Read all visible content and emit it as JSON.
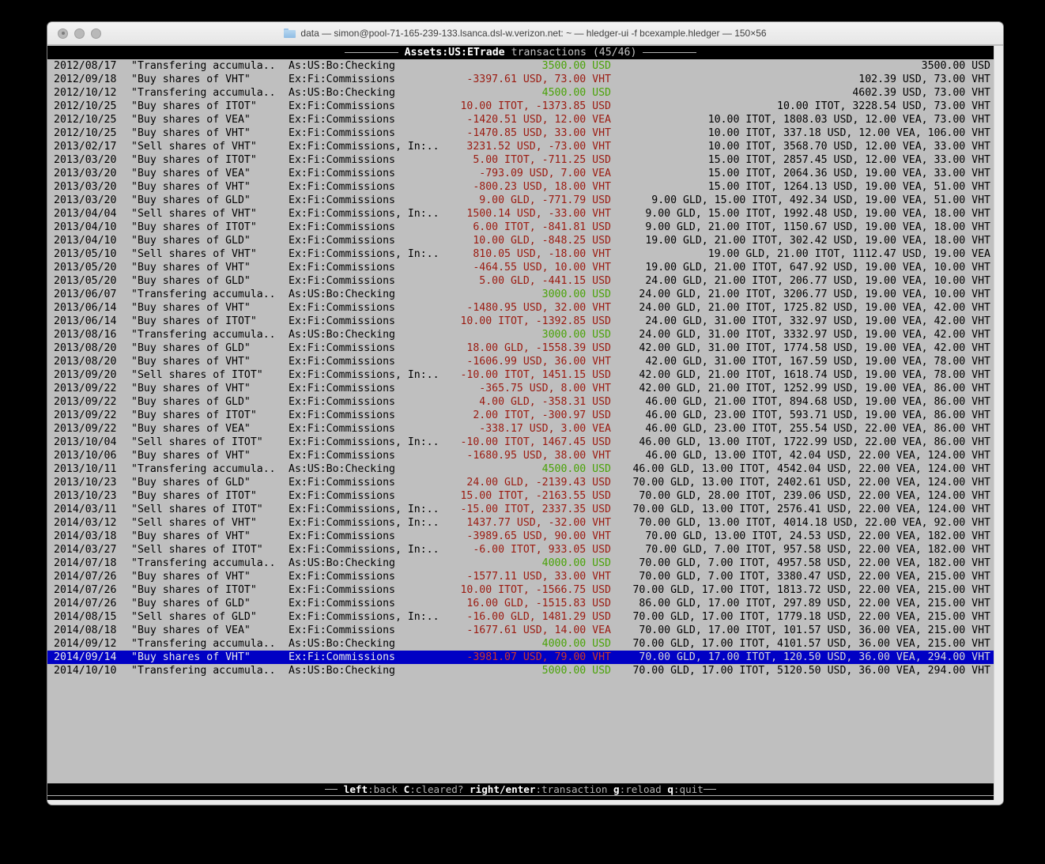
{
  "window": {
    "title": "data — simon@pool-71-165-239-133.lsanca.dsl-w.verizon.net: ~ — hledger-ui -f bcexample.hledger — 150×56",
    "traffic_lights": [
      "close",
      "minimize",
      "zoom"
    ]
  },
  "colors": {
    "terminal_bg": "#bfbfbf",
    "red": "#9b1a10",
    "green": "#4aa308",
    "selection": "#0000c4",
    "selection_red": "#cc372b"
  },
  "screen": {
    "header": {
      "account": "Assets:US:ETrade",
      "rest": "transactions (45/46)"
    },
    "footer": {
      "hints": [
        {
          "key": "left",
          "desc": ":back"
        },
        {
          "key": "C",
          "desc": ":cleared?"
        },
        {
          "key": "right/enter",
          "desc": ":transaction"
        },
        {
          "key": "g",
          "desc": ":reload"
        },
        {
          "key": "q",
          "desc": ":quit"
        }
      ]
    }
  },
  "register": {
    "selected_index": 44,
    "rows": [
      {
        "date": "2012/08/17",
        "description": "\"Transfering accumula..",
        "account": "As:US:Bo:Checking",
        "amount": "3500.00 USD",
        "kind": "deposit",
        "balance": "3500.00 USD"
      },
      {
        "date": "2012/09/18",
        "description": "\"Buy shares of VHT\"",
        "account": "Ex:Fi:Commissions",
        "amount": "-3397.61 USD, 73.00 VHT",
        "kind": "trade",
        "balance": "102.39 USD, 73.00 VHT"
      },
      {
        "date": "2012/10/12",
        "description": "\"Transfering accumula..",
        "account": "As:US:Bo:Checking",
        "amount": "4500.00 USD",
        "kind": "deposit",
        "balance": "4602.39 USD, 73.00 VHT"
      },
      {
        "date": "2012/10/25",
        "description": "\"Buy shares of ITOT\"",
        "account": "Ex:Fi:Commissions",
        "amount": "10.00 ITOT, -1373.85 USD",
        "kind": "trade",
        "balance": "10.00 ITOT, 3228.54 USD, 73.00 VHT"
      },
      {
        "date": "2012/10/25",
        "description": "\"Buy shares of VEA\"",
        "account": "Ex:Fi:Commissions",
        "amount": "-1420.51 USD, 12.00 VEA",
        "kind": "trade",
        "balance": "10.00 ITOT, 1808.03 USD, 12.00 VEA, 73.00 VHT"
      },
      {
        "date": "2012/10/25",
        "description": "\"Buy shares of VHT\"",
        "account": "Ex:Fi:Commissions",
        "amount": "-1470.85 USD, 33.00 VHT",
        "kind": "trade",
        "balance": "10.00 ITOT, 337.18 USD, 12.00 VEA, 106.00 VHT"
      },
      {
        "date": "2013/02/17",
        "description": "\"Sell shares of VHT\"",
        "account": "Ex:Fi:Commissions, In:..",
        "amount": "3231.52 USD, -73.00 VHT",
        "kind": "trade",
        "balance": "10.00 ITOT, 3568.70 USD, 12.00 VEA, 33.00 VHT"
      },
      {
        "date": "2013/03/20",
        "description": "\"Buy shares of ITOT\"",
        "account": "Ex:Fi:Commissions",
        "amount": "5.00 ITOT, -711.25 USD",
        "kind": "trade",
        "balance": "15.00 ITOT, 2857.45 USD, 12.00 VEA, 33.00 VHT"
      },
      {
        "date": "2013/03/20",
        "description": "\"Buy shares of VEA\"",
        "account": "Ex:Fi:Commissions",
        "amount": "-793.09 USD, 7.00 VEA",
        "kind": "trade",
        "balance": "15.00 ITOT, 2064.36 USD, 19.00 VEA, 33.00 VHT"
      },
      {
        "date": "2013/03/20",
        "description": "\"Buy shares of VHT\"",
        "account": "Ex:Fi:Commissions",
        "amount": "-800.23 USD, 18.00 VHT",
        "kind": "trade",
        "balance": "15.00 ITOT, 1264.13 USD, 19.00 VEA, 51.00 VHT"
      },
      {
        "date": "2013/03/20",
        "description": "\"Buy shares of GLD\"",
        "account": "Ex:Fi:Commissions",
        "amount": "9.00 GLD, -771.79 USD",
        "kind": "trade",
        "balance": "9.00 GLD, 15.00 ITOT, 492.34 USD, 19.00 VEA, 51.00 VHT"
      },
      {
        "date": "2013/04/04",
        "description": "\"Sell shares of VHT\"",
        "account": "Ex:Fi:Commissions, In:..",
        "amount": "1500.14 USD, -33.00 VHT",
        "kind": "trade",
        "balance": "9.00 GLD, 15.00 ITOT, 1992.48 USD, 19.00 VEA, 18.00 VHT"
      },
      {
        "date": "2013/04/10",
        "description": "\"Buy shares of ITOT\"",
        "account": "Ex:Fi:Commissions",
        "amount": "6.00 ITOT, -841.81 USD",
        "kind": "trade",
        "balance": "9.00 GLD, 21.00 ITOT, 1150.67 USD, 19.00 VEA, 18.00 VHT"
      },
      {
        "date": "2013/04/10",
        "description": "\"Buy shares of GLD\"",
        "account": "Ex:Fi:Commissions",
        "amount": "10.00 GLD, -848.25 USD",
        "kind": "trade",
        "balance": "19.00 GLD, 21.00 ITOT, 302.42 USD, 19.00 VEA, 18.00 VHT"
      },
      {
        "date": "2013/05/10",
        "description": "\"Sell shares of VHT\"",
        "account": "Ex:Fi:Commissions, In:..",
        "amount": "810.05 USD, -18.00 VHT",
        "kind": "trade",
        "balance": "19.00 GLD, 21.00 ITOT, 1112.47 USD, 19.00 VEA"
      },
      {
        "date": "2013/05/20",
        "description": "\"Buy shares of VHT\"",
        "account": "Ex:Fi:Commissions",
        "amount": "-464.55 USD, 10.00 VHT",
        "kind": "trade",
        "balance": "19.00 GLD, 21.00 ITOT, 647.92 USD, 19.00 VEA, 10.00 VHT"
      },
      {
        "date": "2013/05/20",
        "description": "\"Buy shares of GLD\"",
        "account": "Ex:Fi:Commissions",
        "amount": "5.00 GLD, -441.15 USD",
        "kind": "trade",
        "balance": "24.00 GLD, 21.00 ITOT, 206.77 USD, 19.00 VEA, 10.00 VHT"
      },
      {
        "date": "2013/06/07",
        "description": "\"Transfering accumula..",
        "account": "As:US:Bo:Checking",
        "amount": "3000.00 USD",
        "kind": "deposit",
        "balance": "24.00 GLD, 21.00 ITOT, 3206.77 USD, 19.00 VEA, 10.00 VHT"
      },
      {
        "date": "2013/06/14",
        "description": "\"Buy shares of VHT\"",
        "account": "Ex:Fi:Commissions",
        "amount": "-1480.95 USD, 32.00 VHT",
        "kind": "trade",
        "balance": "24.00 GLD, 21.00 ITOT, 1725.82 USD, 19.00 VEA, 42.00 VHT"
      },
      {
        "date": "2013/06/14",
        "description": "\"Buy shares of ITOT\"",
        "account": "Ex:Fi:Commissions",
        "amount": "10.00 ITOT, -1392.85 USD",
        "kind": "trade",
        "balance": "24.00 GLD, 31.00 ITOT, 332.97 USD, 19.00 VEA, 42.00 VHT"
      },
      {
        "date": "2013/08/16",
        "description": "\"Transfering accumula..",
        "account": "As:US:Bo:Checking",
        "amount": "3000.00 USD",
        "kind": "deposit",
        "balance": "24.00 GLD, 31.00 ITOT, 3332.97 USD, 19.00 VEA, 42.00 VHT"
      },
      {
        "date": "2013/08/20",
        "description": "\"Buy shares of GLD\"",
        "account": "Ex:Fi:Commissions",
        "amount": "18.00 GLD, -1558.39 USD",
        "kind": "trade",
        "balance": "42.00 GLD, 31.00 ITOT, 1774.58 USD, 19.00 VEA, 42.00 VHT"
      },
      {
        "date": "2013/08/20",
        "description": "\"Buy shares of VHT\"",
        "account": "Ex:Fi:Commissions",
        "amount": "-1606.99 USD, 36.00 VHT",
        "kind": "trade",
        "balance": "42.00 GLD, 31.00 ITOT, 167.59 USD, 19.00 VEA, 78.00 VHT"
      },
      {
        "date": "2013/09/20",
        "description": "\"Sell shares of ITOT\"",
        "account": "Ex:Fi:Commissions, In:..",
        "amount": "-10.00 ITOT, 1451.15 USD",
        "kind": "trade",
        "balance": "42.00 GLD, 21.00 ITOT, 1618.74 USD, 19.00 VEA, 78.00 VHT"
      },
      {
        "date": "2013/09/22",
        "description": "\"Buy shares of VHT\"",
        "account": "Ex:Fi:Commissions",
        "amount": "-365.75 USD, 8.00 VHT",
        "kind": "trade",
        "balance": "42.00 GLD, 21.00 ITOT, 1252.99 USD, 19.00 VEA, 86.00 VHT"
      },
      {
        "date": "2013/09/22",
        "description": "\"Buy shares of GLD\"",
        "account": "Ex:Fi:Commissions",
        "amount": "4.00 GLD, -358.31 USD",
        "kind": "trade",
        "balance": "46.00 GLD, 21.00 ITOT, 894.68 USD, 19.00 VEA, 86.00 VHT"
      },
      {
        "date": "2013/09/22",
        "description": "\"Buy shares of ITOT\"",
        "account": "Ex:Fi:Commissions",
        "amount": "2.00 ITOT, -300.97 USD",
        "kind": "trade",
        "balance": "46.00 GLD, 23.00 ITOT, 593.71 USD, 19.00 VEA, 86.00 VHT"
      },
      {
        "date": "2013/09/22",
        "description": "\"Buy shares of VEA\"",
        "account": "Ex:Fi:Commissions",
        "amount": "-338.17 USD, 3.00 VEA",
        "kind": "trade",
        "balance": "46.00 GLD, 23.00 ITOT, 255.54 USD, 22.00 VEA, 86.00 VHT"
      },
      {
        "date": "2013/10/04",
        "description": "\"Sell shares of ITOT\"",
        "account": "Ex:Fi:Commissions, In:..",
        "amount": "-10.00 ITOT, 1467.45 USD",
        "kind": "trade",
        "balance": "46.00 GLD, 13.00 ITOT, 1722.99 USD, 22.00 VEA, 86.00 VHT"
      },
      {
        "date": "2013/10/06",
        "description": "\"Buy shares of VHT\"",
        "account": "Ex:Fi:Commissions",
        "amount": "-1680.95 USD, 38.00 VHT",
        "kind": "trade",
        "balance": "46.00 GLD, 13.00 ITOT, 42.04 USD, 22.00 VEA, 124.00 VHT"
      },
      {
        "date": "2013/10/11",
        "description": "\"Transfering accumula..",
        "account": "As:US:Bo:Checking",
        "amount": "4500.00 USD",
        "kind": "deposit",
        "balance": "46.00 GLD, 13.00 ITOT, 4542.04 USD, 22.00 VEA, 124.00 VHT"
      },
      {
        "date": "2013/10/23",
        "description": "\"Buy shares of GLD\"",
        "account": "Ex:Fi:Commissions",
        "amount": "24.00 GLD, -2139.43 USD",
        "kind": "trade",
        "balance": "70.00 GLD, 13.00 ITOT, 2402.61 USD, 22.00 VEA, 124.00 VHT"
      },
      {
        "date": "2013/10/23",
        "description": "\"Buy shares of ITOT\"",
        "account": "Ex:Fi:Commissions",
        "amount": "15.00 ITOT, -2163.55 USD",
        "kind": "trade",
        "balance": "70.00 GLD, 28.00 ITOT, 239.06 USD, 22.00 VEA, 124.00 VHT"
      },
      {
        "date": "2014/03/11",
        "description": "\"Sell shares of ITOT\"",
        "account": "Ex:Fi:Commissions, In:..",
        "amount": "-15.00 ITOT, 2337.35 USD",
        "kind": "trade",
        "balance": "70.00 GLD, 13.00 ITOT, 2576.41 USD, 22.00 VEA, 124.00 VHT"
      },
      {
        "date": "2014/03/12",
        "description": "\"Sell shares of VHT\"",
        "account": "Ex:Fi:Commissions, In:..",
        "amount": "1437.77 USD, -32.00 VHT",
        "kind": "trade",
        "balance": "70.00 GLD, 13.00 ITOT, 4014.18 USD, 22.00 VEA, 92.00 VHT"
      },
      {
        "date": "2014/03/18",
        "description": "\"Buy shares of VHT\"",
        "account": "Ex:Fi:Commissions",
        "amount": "-3989.65 USD, 90.00 VHT",
        "kind": "trade",
        "balance": "70.00 GLD, 13.00 ITOT, 24.53 USD, 22.00 VEA, 182.00 VHT"
      },
      {
        "date": "2014/03/27",
        "description": "\"Sell shares of ITOT\"",
        "account": "Ex:Fi:Commissions, In:..",
        "amount": "-6.00 ITOT, 933.05 USD",
        "kind": "trade",
        "balance": "70.00 GLD, 7.00 ITOT, 957.58 USD, 22.00 VEA, 182.00 VHT"
      },
      {
        "date": "2014/07/18",
        "description": "\"Transfering accumula..",
        "account": "As:US:Bo:Checking",
        "amount": "4000.00 USD",
        "kind": "deposit",
        "balance": "70.00 GLD, 7.00 ITOT, 4957.58 USD, 22.00 VEA, 182.00 VHT"
      },
      {
        "date": "2014/07/26",
        "description": "\"Buy shares of VHT\"",
        "account": "Ex:Fi:Commissions",
        "amount": "-1577.11 USD, 33.00 VHT",
        "kind": "trade",
        "balance": "70.00 GLD, 7.00 ITOT, 3380.47 USD, 22.00 VEA, 215.00 VHT"
      },
      {
        "date": "2014/07/26",
        "description": "\"Buy shares of ITOT\"",
        "account": "Ex:Fi:Commissions",
        "amount": "10.00 ITOT, -1566.75 USD",
        "kind": "trade",
        "balance": "70.00 GLD, 17.00 ITOT, 1813.72 USD, 22.00 VEA, 215.00 VHT"
      },
      {
        "date": "2014/07/26",
        "description": "\"Buy shares of GLD\"",
        "account": "Ex:Fi:Commissions",
        "amount": "16.00 GLD, -1515.83 USD",
        "kind": "trade",
        "balance": "86.00 GLD, 17.00 ITOT, 297.89 USD, 22.00 VEA, 215.00 VHT"
      },
      {
        "date": "2014/08/15",
        "description": "\"Sell shares of GLD\"",
        "account": "Ex:Fi:Commissions, In:..",
        "amount": "-16.00 GLD, 1481.29 USD",
        "kind": "trade",
        "balance": "70.00 GLD, 17.00 ITOT, 1779.18 USD, 22.00 VEA, 215.00 VHT"
      },
      {
        "date": "2014/08/18",
        "description": "\"Buy shares of VEA\"",
        "account": "Ex:Fi:Commissions",
        "amount": "-1677.61 USD, 14.00 VEA",
        "kind": "trade",
        "balance": "70.00 GLD, 17.00 ITOT, 101.57 USD, 36.00 VEA, 215.00 VHT"
      },
      {
        "date": "2014/09/12",
        "description": "\"Transfering accumula..",
        "account": "As:US:Bo:Checking",
        "amount": "4000.00 USD",
        "kind": "deposit",
        "balance": "70.00 GLD, 17.00 ITOT, 4101.57 USD, 36.00 VEA, 215.00 VHT"
      },
      {
        "date": "2014/09/14",
        "description": "\"Buy shares of VHT\"",
        "account": "Ex:Fi:Commissions",
        "amount": "-3981.07 USD, 79.00 VHT",
        "kind": "trade",
        "balance": "70.00 GLD, 17.00 ITOT, 120.50 USD, 36.00 VEA, 294.00 VHT"
      },
      {
        "date": "2014/10/10",
        "description": "\"Transfering accumula..",
        "account": "As:US:Bo:Checking",
        "amount": "5000.00 USD",
        "kind": "deposit",
        "balance": "70.00 GLD, 17.00 ITOT, 5120.50 USD, 36.00 VEA, 294.00 VHT"
      }
    ]
  }
}
